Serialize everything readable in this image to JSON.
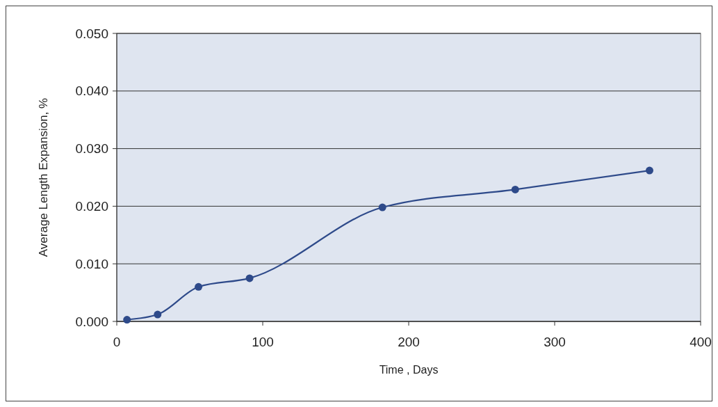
{
  "chart_data": {
    "type": "line",
    "xlabel": "Time , Days",
    "ylabel": "Average Length Expansion, %",
    "x": [
      7,
      28,
      56,
      91,
      182,
      273,
      365
    ],
    "series": [
      {
        "color": "#2e4a8a",
        "values": [
          0.0003,
          0.0012,
          0.006,
          0.0075,
          0.0198,
          0.0229,
          0.0262
        ]
      }
    ],
    "xlim": [
      0,
      400
    ],
    "xticks": [
      0,
      100,
      200,
      300,
      400
    ],
    "ylim": [
      0,
      0.05
    ],
    "yticks": [
      {
        "value": 0,
        "label": "0.000"
      },
      {
        "value": 0.01,
        "label": "0.010"
      },
      {
        "value": 0.02,
        "label": "0.020"
      },
      {
        "value": 0.03,
        "label": "0.030"
      },
      {
        "value": 0.04,
        "label": "0.040"
      },
      {
        "value": 0.05,
        "label": "0.050"
      }
    ],
    "grid": "y",
    "marker": "circle",
    "line_style": "solid"
  }
}
